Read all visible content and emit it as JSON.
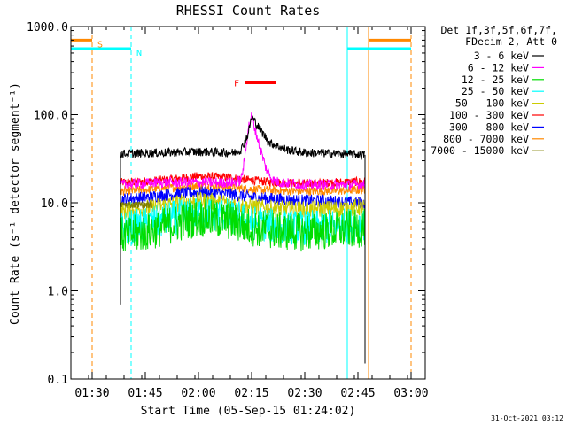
{
  "chart_data": {
    "type": "line",
    "title": "RHESSI Count Rates",
    "xlabel": "Start Time (05-Sep-15 01:24:02)",
    "ylabel": "Count Rate (s⁻¹ detector segment⁻¹)",
    "yscale": "log",
    "ylim": [
      0.1,
      1000
    ],
    "xlim": [
      "01:24",
      "03:04"
    ],
    "x_ticks": [
      "01:30",
      "01:45",
      "02:00",
      "02:15",
      "02:30",
      "02:45",
      "03:00"
    ],
    "y_ticks": [
      "0.1",
      "1.0",
      "10.0",
      "100.0",
      "1000.0"
    ],
    "legend_header": [
      "Det 1f,3f,5f,6f,7f,",
      "FDecim 2, Att 0"
    ],
    "data_window": [
      "01:38",
      "02:47"
    ],
    "series": [
      {
        "name": "3 - 6 keV",
        "color": "#000000",
        "x": [
          "01:38",
          "01:50",
          "02:00",
          "02:10",
          "02:12",
          "02:14",
          "02:15",
          "02:17",
          "02:20",
          "02:25",
          "02:30",
          "02:40",
          "02:47"
        ],
        "y": [
          36,
          37,
          38,
          37,
          40,
          60,
          95,
          72,
          48,
          40,
          37,
          36,
          35
        ]
      },
      {
        "name": "6 - 12 keV",
        "color": "#ff00ff",
        "x": [
          "01:38",
          "01:50",
          "02:00",
          "02:10",
          "02:12",
          "02:13",
          "02:14",
          "02:15",
          "02:17",
          "02:19",
          "02:21",
          "02:23",
          "02:30",
          "02:47"
        ],
        "y": [
          16,
          17,
          17,
          17,
          18,
          30,
          70,
          95,
          48,
          25,
          18,
          17,
          16,
          16
        ]
      },
      {
        "name": "12 - 25 keV",
        "color": "#00dd00",
        "x": [
          "01:38",
          "01:45",
          "01:52",
          "02:00",
          "02:08",
          "02:15",
          "02:22",
          "02:30",
          "02:38",
          "02:47"
        ],
        "y": [
          4.2,
          4.6,
          5.6,
          6.8,
          6.3,
          5.3,
          4.8,
          4.6,
          4.8,
          5.2
        ]
      },
      {
        "name": "25 - 50 keV",
        "color": "#00ffff",
        "x": [
          "01:38",
          "01:45",
          "01:52",
          "02:00",
          "02:08",
          "02:15",
          "02:22",
          "02:30",
          "02:38",
          "02:47"
        ],
        "y": [
          5.0,
          5.6,
          6.6,
          7.8,
          7.2,
          6.0,
          5.4,
          5.2,
          5.4,
          5.8
        ]
      },
      {
        "name": "50 - 100 keV",
        "color": "#cccc00",
        "x": [
          "01:38",
          "01:45",
          "01:52",
          "02:00",
          "02:08",
          "02:15",
          "02:22",
          "02:30",
          "02:38",
          "02:47"
        ],
        "y": [
          8.0,
          8.6,
          9.6,
          10.6,
          10.0,
          9.0,
          8.5,
          8.3,
          8.5,
          9.0
        ]
      },
      {
        "name": "100 - 300 keV",
        "color": "#ff0000",
        "x": [
          "01:38",
          "01:45",
          "01:52",
          "02:00",
          "02:08",
          "02:15",
          "02:22",
          "02:30",
          "02:38",
          "02:47"
        ],
        "y": [
          17,
          17.5,
          18.5,
          20,
          19.5,
          18,
          17,
          16.5,
          17,
          17.5
        ]
      },
      {
        "name": "300 - 800 keV",
        "color": "#0000ff",
        "x": [
          "01:38",
          "01:45",
          "01:52",
          "02:00",
          "02:08",
          "02:15",
          "02:22",
          "02:30",
          "02:38",
          "02:47"
        ],
        "y": [
          11,
          11.5,
          12.4,
          13.2,
          12.6,
          11.6,
          11,
          10.6,
          10.4,
          10
        ]
      },
      {
        "name": "800 - 7000 keV",
        "color": "#ff8800",
        "x": [
          "01:38",
          "01:45",
          "01:52",
          "02:00",
          "02:08",
          "02:15",
          "02:22",
          "02:30",
          "02:38",
          "02:47"
        ],
        "y": [
          13.5,
          14,
          14.8,
          15.6,
          15.1,
          14.2,
          13.7,
          13.5,
          13.6,
          14
        ]
      },
      {
        "name": "7000 - 15000 keV",
        "color": "#808000",
        "x": [
          "01:38",
          "01:47"
        ],
        "y": [
          9.5,
          9.5
        ]
      }
    ],
    "markers": [
      {
        "label": "S",
        "color": "#ff8800",
        "x": [
          "01:24",
          "01:30"
        ],
        "y": 700
      },
      {
        "label": "N",
        "color": "#00ffff",
        "x": [
          "01:24",
          "01:41"
        ],
        "y": 560
      },
      {
        "label": "F",
        "color": "#ff0000",
        "x": [
          "02:13",
          "02:22"
        ],
        "y": 230
      }
    ],
    "right_markers": [
      {
        "color": "#00ffff",
        "x": [
          "02:42",
          "03:00"
        ],
        "y": 560
      },
      {
        "color": "#ff8800",
        "x": [
          "02:48",
          "03:00"
        ],
        "y": 700
      }
    ],
    "vertical_lines": [
      {
        "x": "01:24",
        "color": "#00ffff",
        "style": "solid"
      },
      {
        "x": "01:30",
        "color": "#ff8800",
        "style": "dashed"
      },
      {
        "x": "01:41",
        "color": "#00ffff",
        "style": "dashed"
      },
      {
        "x": "02:42",
        "color": "#00ffff",
        "style": "solid"
      },
      {
        "x": "02:48",
        "color": "#ff8800",
        "style": "solid"
      },
      {
        "x": "03:00",
        "color": "#ff8800",
        "style": "dashed"
      }
    ]
  },
  "footer_date": "31-Oct-2021 03:12"
}
